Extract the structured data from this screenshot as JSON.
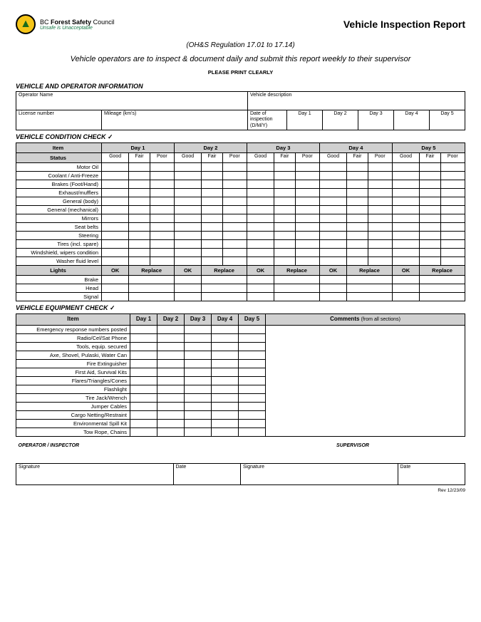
{
  "header": {
    "org_prefix": "BC",
    "org_bold": "Forest Safety",
    "org_suffix": "Council",
    "tagline": "Unsafe is Unacceptable",
    "title": "Vehicle Inspection Report",
    "regulation": "(OH&S Regulation 17.01 to 17.14)",
    "instruction": "Vehicle operators are to inspect & document daily and submit this report weekly to their supervisor",
    "print_clearly": "PLEASE PRINT CLEARLY"
  },
  "section_info": "VEHICLE AND OPERATOR INFORMATION",
  "info": {
    "operator_name": "Operator Name",
    "vehicle_desc": "Vehicle description",
    "license": "License number",
    "mileage": "Mileage (km's)",
    "date_insp": "Date of inspection (D/M/Y)",
    "days": [
      "Day 1",
      "Day 2",
      "Day 3",
      "Day 4",
      "Day 5"
    ]
  },
  "section_cond": "VEHICLE CONDITION CHECK",
  "check_mark": "✓",
  "cond": {
    "item_head": "Item",
    "day_heads": [
      "Day 1",
      "Day 2",
      "Day 3",
      "Day 4",
      "Day 5"
    ],
    "status_head": "Status",
    "status_labels": [
      "Good",
      "Fair",
      "Poor"
    ],
    "items": [
      "Motor Oil",
      "Coolant / Anti-Freeze",
      "Brakes (Foot/Hand)",
      "Exhaust/mufflers",
      "General (body)",
      "General (mechanical)",
      "Mirrors",
      "Seat belts",
      "Steering",
      "Tires (incl. spare)",
      "Windshield, wipers condition",
      "Washer fluid level"
    ],
    "lights_head": "Lights",
    "lights_labels": [
      "OK",
      "Replace"
    ],
    "lights_items": [
      "Brake",
      "Head",
      "Signal"
    ]
  },
  "section_equip": "VEHICLE EQUIPMENT CHECK",
  "equip": {
    "item_head": "Item",
    "day_heads": [
      "Day  1",
      "Day 2",
      "Day 3",
      "Day 4",
      "Day  5"
    ],
    "comments_head": "Comments",
    "comments_note": "(from all sections)",
    "items": [
      "Emergency response numbers posted",
      "Radio/Cel/Sat Phone",
      "Tools, equip. secured",
      "Axe, Shovel, Pulaski, Water Can",
      "Fire Extinguisher",
      "First Aid, Survival Kits",
      "Flares/Triangles/Cones",
      "Flashlight",
      "Tire Jack/Wrench",
      "Jumper Cables",
      "Cargo Netting/Restraint",
      "Environmental Spill Kit",
      "Tow Rope, Chains"
    ]
  },
  "sig": {
    "operator_head": "OPERATOR / INSPECTOR",
    "supervisor_head": "SUPERVISOR",
    "signature": "Signature",
    "date": "Date"
  },
  "rev": "Rev 12/23/09"
}
